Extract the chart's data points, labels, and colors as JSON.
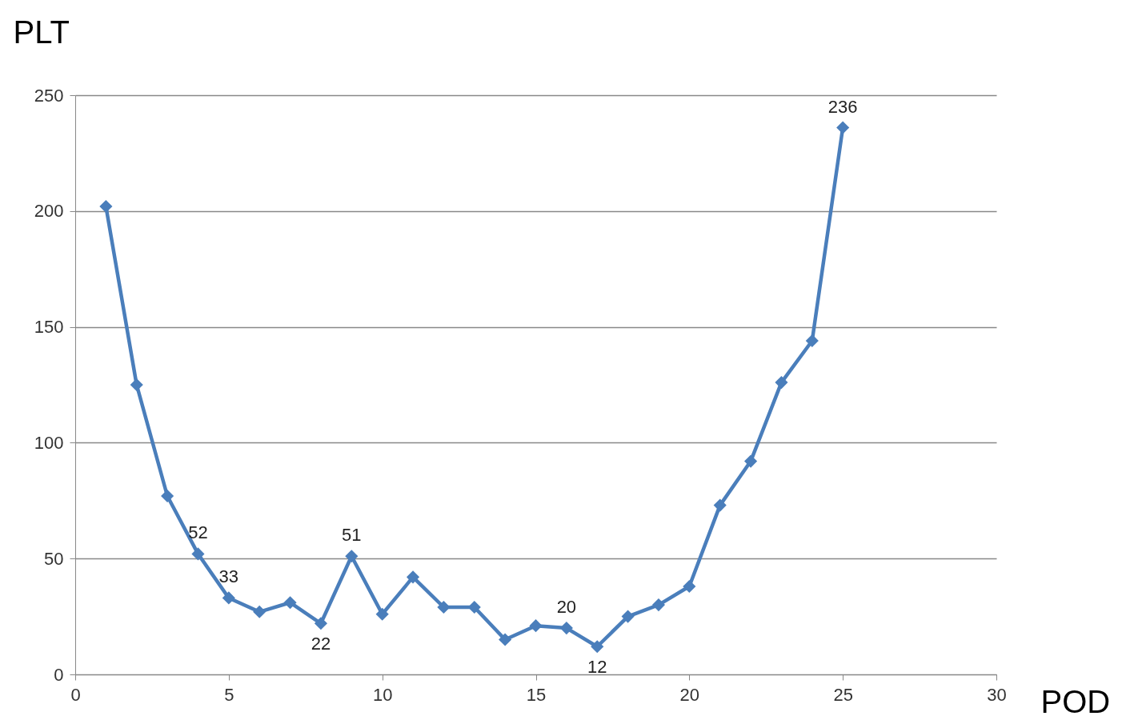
{
  "chart_data": {
    "type": "line",
    "xlabel": "POD",
    "ylabel": "PLT",
    "x": [
      1,
      2,
      3,
      4,
      5,
      6,
      7,
      8,
      9,
      10,
      11,
      12,
      13,
      14,
      15,
      16,
      17,
      18,
      19,
      20,
      21,
      22,
      23,
      24,
      25
    ],
    "series": [
      {
        "color": "#4a7ebb",
        "values": [
          202,
          125,
          77,
          52,
          33,
          27,
          31,
          22,
          51,
          26,
          42,
          29,
          29,
          15,
          21,
          20,
          12,
          25,
          30,
          38,
          73,
          92,
          126,
          144,
          236
        ],
        "value_labels": [
          null,
          null,
          null,
          "52",
          "33",
          null,
          null,
          "22",
          "51",
          null,
          null,
          null,
          null,
          null,
          null,
          "20",
          "12",
          null,
          null,
          null,
          null,
          null,
          null,
          null,
          "236"
        ]
      }
    ],
    "xlim": [
      0,
      30
    ],
    "xticks": [
      0,
      5,
      10,
      15,
      20,
      25,
      30
    ],
    "ylim": [
      0,
      250
    ],
    "yticks": [
      0,
      50,
      100,
      150,
      200,
      250
    ],
    "grid": "y",
    "marker": "diamond",
    "line_style": "solid"
  }
}
